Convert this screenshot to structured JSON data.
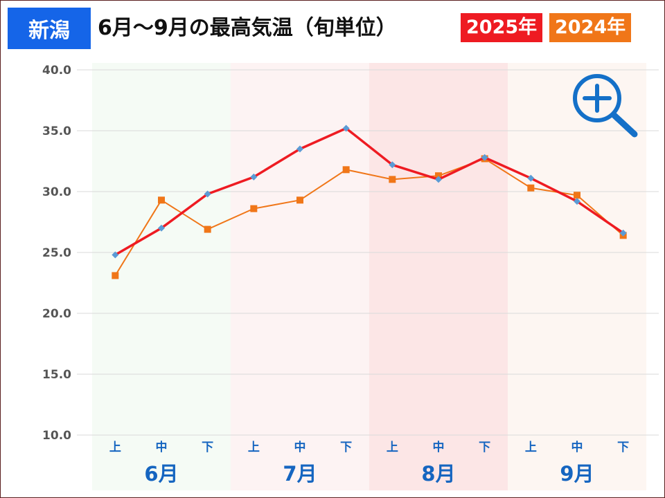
{
  "header": {
    "region": "新潟",
    "title": "6月～9月の最高気温（旬単位）",
    "legend_2025": "2025年",
    "legend_2024": "2024年"
  },
  "zoom": {
    "icon": "zoom-in-icon"
  },
  "colors": {
    "region_bg": "#1565e8",
    "series_2025": "#ee1b22",
    "series_2025_marker": "#5b9bd5",
    "series_2024": "#f07618",
    "month_6_bg": "#f5fbf5",
    "month_7_bg": "#fdf3f3",
    "month_8_bg": "#fce6e6",
    "month_9_bg": "#fdf6f2",
    "tick_label": "#1565c0"
  },
  "chart_data": {
    "type": "line",
    "categories": [
      "上",
      "中",
      "下",
      "上",
      "中",
      "下",
      "上",
      "中",
      "下",
      "上",
      "中",
      "下"
    ],
    "months": [
      "6月",
      "7月",
      "8月",
      "9月"
    ],
    "series": [
      {
        "name": "2025年",
        "values": [
          24.8,
          27.0,
          29.8,
          31.2,
          33.5,
          35.2,
          32.2,
          31.0,
          32.8,
          31.1,
          29.2,
          26.6
        ]
      },
      {
        "name": "2024年",
        "values": [
          23.1,
          29.3,
          26.9,
          28.6,
          29.3,
          31.8,
          31.0,
          31.3,
          32.7,
          30.3,
          29.7,
          26.4
        ]
      }
    ],
    "yticks": [
      "10.0",
      "15.0",
      "20.0",
      "25.0",
      "30.0",
      "35.0",
      "40.0"
    ],
    "ylim": [
      10,
      40
    ],
    "grid": true,
    "legend": "top-right"
  }
}
